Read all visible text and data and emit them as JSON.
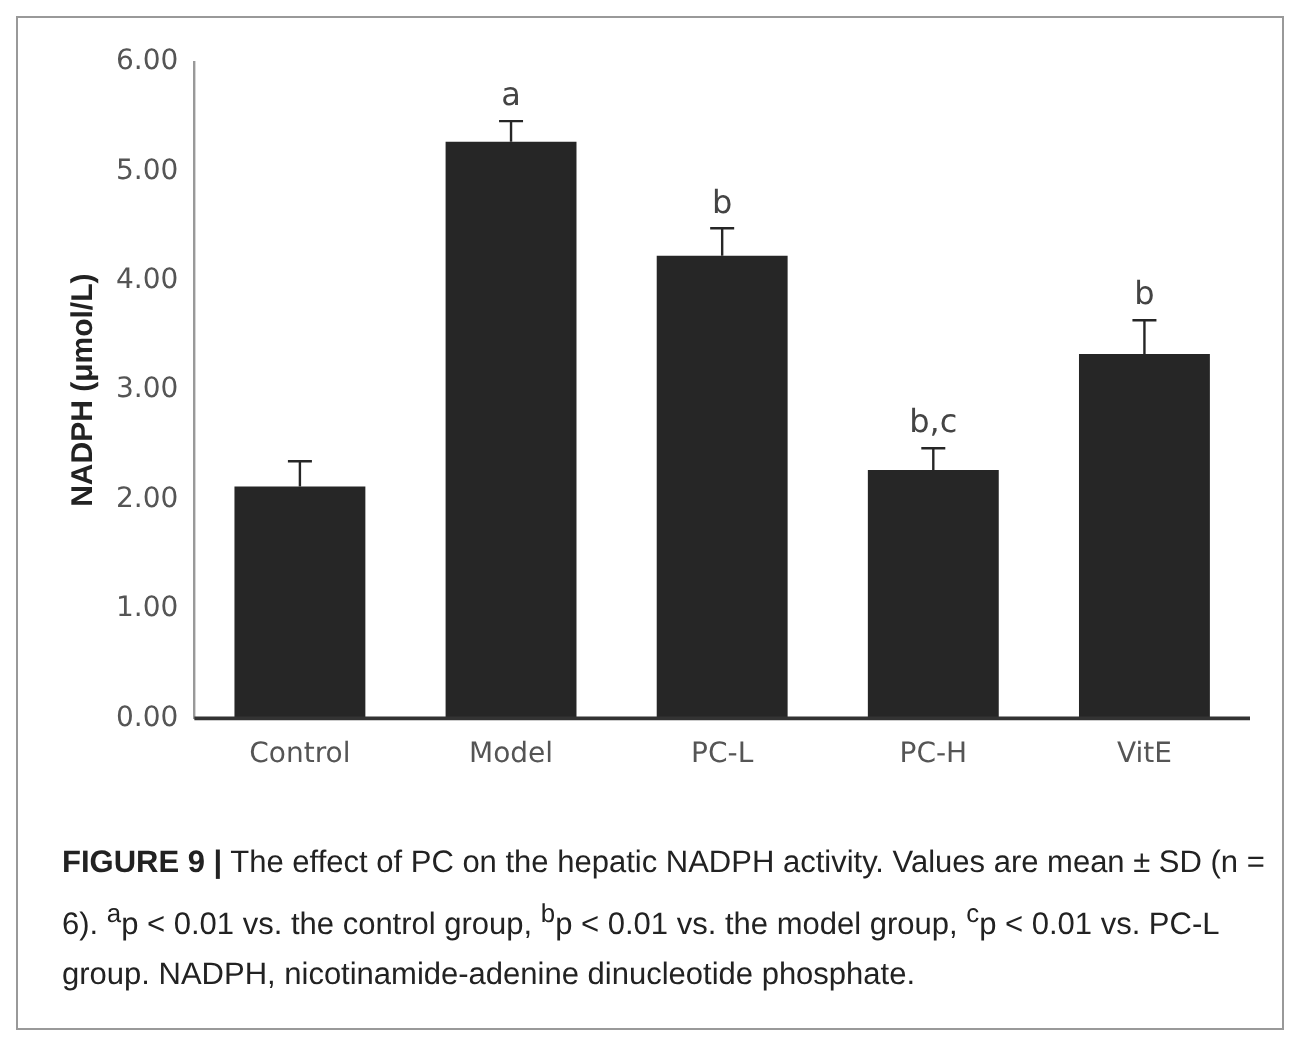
{
  "chart_data": {
    "type": "bar",
    "title": "FIGURE 9 |",
    "ylabel": "NADPH (μmol/L)",
    "categories": [
      "Control",
      "Model",
      "PC-L",
      "PC-H",
      "VitE"
    ],
    "values": [
      2.12,
      5.27,
      4.23,
      2.27,
      3.33
    ],
    "errors": [
      [
        2.12,
        2.35
      ],
      [
        5.27,
        5.46
      ],
      [
        4.23,
        4.48
      ],
      [
        2.27,
        2.47
      ],
      [
        3.33,
        3.64
      ]
    ],
    "color": "#262626",
    "ylim": [
      0,
      6
    ],
    "yticks": [
      {
        "value": 0,
        "label": "0.00"
      },
      {
        "value": 1,
        "label": "1.00"
      },
      {
        "value": 2,
        "label": "2.00"
      },
      {
        "value": 3,
        "label": "3.00"
      },
      {
        "value": 4,
        "label": "4.00"
      },
      {
        "value": 5,
        "label": "5.00"
      },
      {
        "value": 6,
        "label": "6.00"
      }
    ],
    "grid": false,
    "legend": false,
    "annotations": [
      {
        "text": "a",
        "x": "Model",
        "y": 5.46
      },
      {
        "text": "b",
        "x": "PC-L",
        "y": 4.48
      },
      {
        "text": "b,c",
        "x": "PC-H",
        "y": 2.47
      },
      {
        "text": "b",
        "x": "VitE",
        "y": 3.64
      },
      "The effect of PC on the hepatic NADPH activity. Values are mean ± SD (n = 6). $^{a}$p < 0.01 vs. the control group, $^{b}$p < 0.01 vs. the model group, $^{c}$p < 0.01 vs. PC-L group. NADPH, nicotinamide-adenine dinucleotide phosphate."
    ]
  }
}
